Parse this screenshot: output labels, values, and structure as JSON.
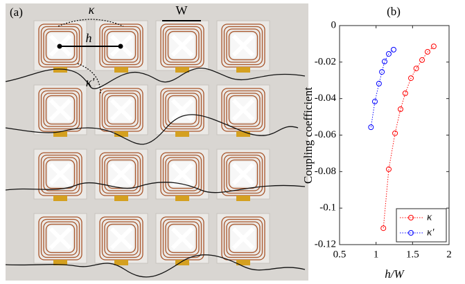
{
  "photo": {
    "panel_label": "(a)",
    "annotations": {
      "kappa": "κ",
      "h": "h",
      "w": "W",
      "kappa_prime": "κ'"
    }
  },
  "chart_data": {
    "type": "line",
    "title": "(b)",
    "x_label": "h/W",
    "y_label": "Coupling coefficient",
    "xlim": [
      0.5,
      2
    ],
    "xticks": [
      0.5,
      1,
      1.5,
      2
    ],
    "ylim": [
      -0.12,
      0
    ],
    "yticks": [
      0,
      -0.02,
      -0.04,
      -0.06,
      -0.08,
      -0.1,
      -0.12
    ],
    "legend": "bottom-right",
    "series": [
      {
        "name": "κ",
        "color": "#ff0000",
        "x": [
          1.1,
          1.174,
          1.26,
          1.335,
          1.4,
          1.478,
          1.55,
          1.63,
          1.705,
          1.79
        ],
        "values": [
          -0.111,
          -0.0787,
          -0.059,
          -0.0458,
          -0.0371,
          -0.0288,
          -0.0235,
          -0.0189,
          -0.0144,
          -0.0114
        ]
      },
      {
        "name": "κ'",
        "color": "#0000ff",
        "x": [
          0.93,
          0.984,
          1.04,
          1.08,
          1.117,
          1.174,
          1.24
        ],
        "values": [
          -0.0557,
          -0.0416,
          -0.0318,
          -0.0254,
          -0.0197,
          -0.0155,
          -0.0132
        ]
      }
    ]
  }
}
